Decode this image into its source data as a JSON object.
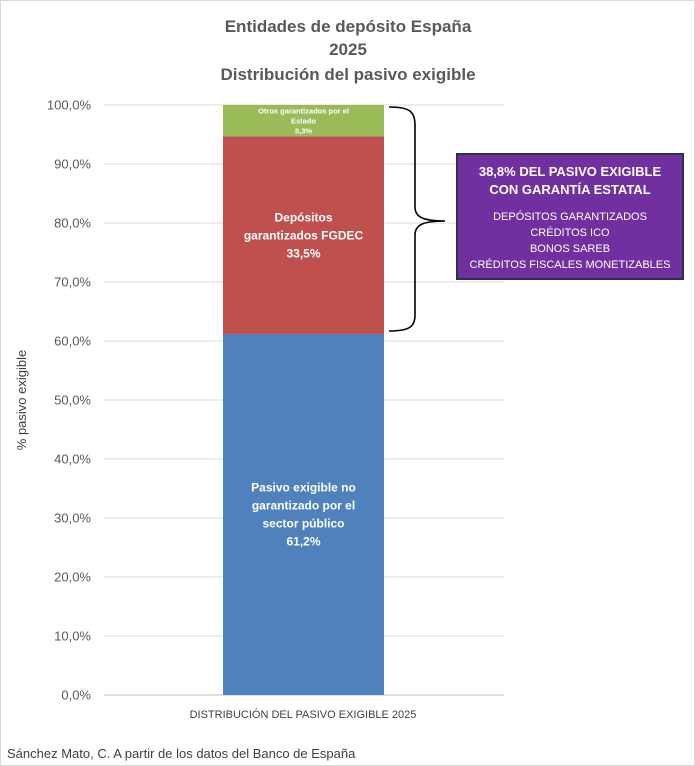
{
  "chart_data": {
    "type": "bar",
    "stacked": true,
    "title": [
      "Entidades de depósito España",
      "2025",
      "Distribución del pasivo exigible"
    ],
    "categories": [
      "DISTRIBUCIÓN DEL PASIVO EXIGIBLE 2025"
    ],
    "ylabel": "%  pasivo exigible",
    "xlabel": "",
    "ylim": [
      0,
      100
    ],
    "y_ticks": [
      "0,0%",
      "10,0%",
      "20,0%",
      "30,0%",
      "40,0%",
      "50,0%",
      "60,0%",
      "70,0%",
      "80,0%",
      "90,0%",
      "100,0%"
    ],
    "grid": true,
    "legend": "none",
    "series": [
      {
        "key": "no_garantizado",
        "value": 61.2,
        "color": "#4f81bd",
        "label_lines": [
          "Pasivo exigible no",
          "garantizado por el",
          "sector público",
          "61,2%"
        ]
      },
      {
        "key": "fgdec",
        "value": 33.5,
        "color": "#c0504d",
        "label_lines": [
          "Depósitos",
          "garantizados FGDEC",
          "33,5%"
        ]
      },
      {
        "key": "estado",
        "value": 5.3,
        "color": "#9bbb59",
        "label_lines": [
          "Otros garantizados por el",
          "Estado",
          "5,3%"
        ]
      }
    ]
  },
  "callout": {
    "heading_line1": "38,8% DEL PASIVO EXIGIBLE",
    "heading_line2": "CON GARANTÍA ESTATAL",
    "items": [
      "DEPÓSITOS GARANTIZADOS",
      "CRÉDITOS ICO",
      "BONOS SAREB",
      "CRÉDITOS FISCALES MONETIZABLES"
    ],
    "color": "#7030a0"
  },
  "source": "Sánchez Mato, C.  A partir de los datos del Banco de España"
}
